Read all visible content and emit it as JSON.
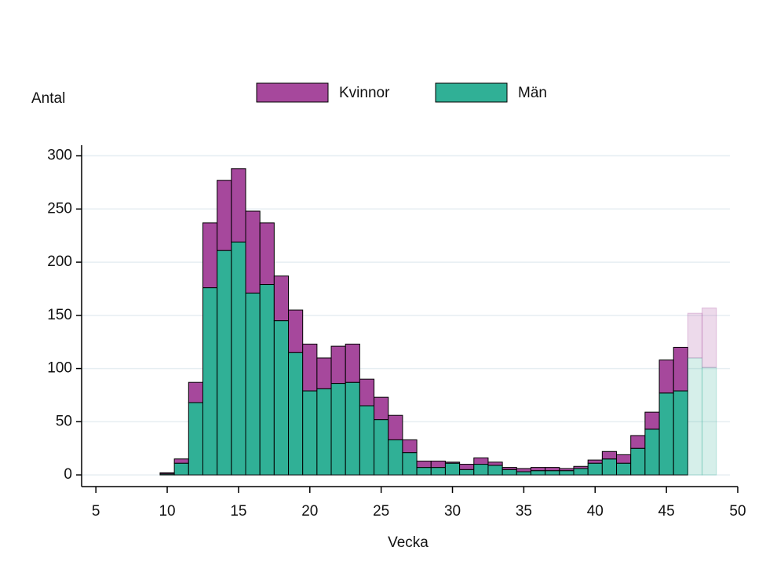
{
  "chart_data": {
    "type": "bar",
    "stacked": true,
    "y_label": "Antal",
    "x_label": "Vecka",
    "x": [
      10,
      11,
      12,
      13,
      14,
      15,
      16,
      17,
      18,
      19,
      20,
      21,
      22,
      23,
      24,
      25,
      26,
      27,
      28,
      29,
      30,
      31,
      32,
      33,
      34,
      35,
      36,
      37,
      38,
      39,
      40,
      41,
      42,
      43,
      44,
      45,
      46,
      47,
      48
    ],
    "series": [
      {
        "name": "Kvinnor",
        "color": "#a6489c",
        "values": [
          1,
          4,
          19,
          61,
          66,
          69,
          77,
          58,
          42,
          40,
          44,
          29,
          35,
          36,
          25,
          21,
          23,
          12,
          6,
          6,
          1,
          5,
          6,
          3,
          2,
          3,
          3,
          3,
          2,
          2,
          3,
          7,
          8,
          12,
          16,
          31,
          41,
          42,
          56
        ]
      },
      {
        "name": "Män",
        "color": "#30b096",
        "values": [
          1,
          11,
          68,
          176,
          211,
          219,
          171,
          179,
          145,
          115,
          79,
          81,
          86,
          87,
          65,
          52,
          33,
          21,
          7,
          7,
          11,
          5,
          10,
          9,
          5,
          3,
          4,
          4,
          4,
          6,
          11,
          15,
          11,
          25,
          43,
          77,
          79,
          110,
          101
        ]
      }
    ],
    "faded_x": [
      47,
      48
    ],
    "xlim": [
      4,
      50
    ],
    "xticks": [
      5,
      10,
      15,
      20,
      25,
      30,
      35,
      40,
      45,
      50
    ],
    "ylim": [
      -11,
      310
    ],
    "yticks": [
      0,
      50,
      100,
      150,
      200,
      250,
      300
    ],
    "grid": true,
    "legend": "top"
  }
}
